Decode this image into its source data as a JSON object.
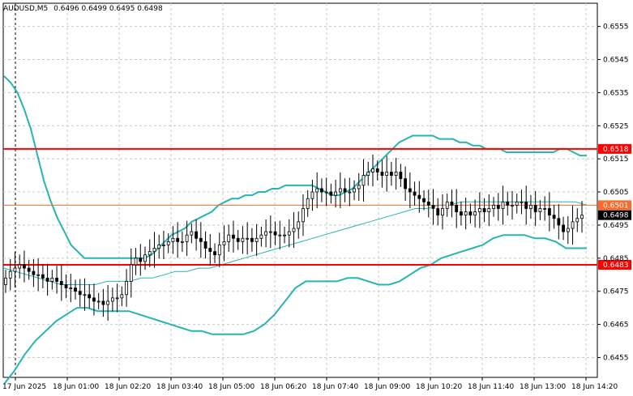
{
  "header": {
    "symbol_label": "AUDUSD,M5",
    "ohlc_label": "0.6496 0.6499 0.6495 0.6498"
  },
  "chart_data": {
    "type": "candlestick",
    "symbol": "AUDUSD",
    "timeframe": "M5",
    "ylim": [
      0.6449,
      0.6562
    ],
    "y_ticks": [
      "0.6555",
      "0.6545",
      "0.6535",
      "0.6525",
      "0.6515",
      "0.6505",
      "0.6495",
      "0.6485",
      "0.6475",
      "0.6465",
      "0.6455"
    ],
    "x_ticks": [
      "17 Jun 2025",
      "18 Jun 01:00",
      "18 Jun 02:20",
      "18 Jun 03:40",
      "18 Jun 05:00",
      "18 Jun 06:20",
      "18 Jun 07:40",
      "18 Jun 09:00",
      "18 Jun 10:20",
      "18 Jun 11:40",
      "18 Jun 13:00",
      "18 Jun 14:20"
    ],
    "horizontal_lines": [
      {
        "label": "0.6518",
        "value": 0.6518,
        "color": "#ff0000"
      },
      {
        "label": "0.6501",
        "value": 0.6501,
        "color": "#ff6a2a"
      },
      {
        "label": "0.6483",
        "value": 0.6483,
        "color": "#ff0000"
      }
    ],
    "current_price": {
      "label": "0.6498",
      "value": 0.6498
    },
    "close": [
      0.6479,
      0.6481,
      0.6482,
      0.6483,
      0.6482,
      0.6481,
      0.648,
      0.648,
      0.6479,
      0.6478,
      0.6479,
      0.6478,
      0.6477,
      0.6476,
      0.6476,
      0.6475,
      0.6474,
      0.6474,
      0.6473,
      0.6472,
      0.6472,
      0.6471,
      0.6472,
      0.6473,
      0.6473,
      0.6474,
      0.6478,
      0.6483,
      0.6485,
      0.6484,
      0.6486,
      0.6487,
      0.6488,
      0.6489,
      0.6489,
      0.649,
      0.6491,
      0.649,
      0.649,
      0.6492,
      0.6493,
      0.6491,
      0.649,
      0.6488,
      0.6487,
      0.6486,
      0.6489,
      0.649,
      0.6492,
      0.6491,
      0.649,
      0.6491,
      0.6491,
      0.649,
      0.6491,
      0.6492,
      0.6493,
      0.6493,
      0.6492,
      0.6492,
      0.6492,
      0.6493,
      0.6494,
      0.6496,
      0.65,
      0.6503,
      0.6505,
      0.6506,
      0.6505,
      0.6505,
      0.6504,
      0.6505,
      0.6506,
      0.6505,
      0.6505,
      0.6506,
      0.6507,
      0.651,
      0.6511,
      0.6512,
      0.6511,
      0.651,
      0.6511,
      0.651,
      0.6511,
      0.6509,
      0.6506,
      0.6505,
      0.6504,
      0.6503,
      0.6502,
      0.6501,
      0.65,
      0.6498,
      0.65,
      0.6502,
      0.6501,
      0.6499,
      0.6498,
      0.6499,
      0.6498,
      0.6499,
      0.65,
      0.6499,
      0.65,
      0.6501,
      0.65,
      0.6502,
      0.6501,
      0.6501,
      0.6502,
      0.6502,
      0.65,
      0.6501,
      0.6499,
      0.65,
      0.65,
      0.6498,
      0.6497,
      0.6495,
      0.6493,
      0.6494,
      0.6496,
      0.6497,
      0.6498
    ],
    "bb_upper": [
      0.654,
      0.6538,
      0.6535,
      0.653,
      0.6524,
      0.6516,
      0.6508,
      0.6502,
      0.6497,
      0.6493,
      0.6489,
      0.6487,
      0.6485,
      0.6485,
      0.6485,
      0.6485,
      0.6485,
      0.6485,
      0.6485,
      0.6485,
      0.6485,
      0.6485,
      0.6486,
      0.6488,
      0.649,
      0.6492,
      0.6493,
      0.6494,
      0.6496,
      0.6497,
      0.6498,
      0.6499,
      0.6501,
      0.6502,
      0.6503,
      0.6503,
      0.6504,
      0.6504,
      0.6505,
      0.6505,
      0.6506,
      0.6506,
      0.6507,
      0.6507,
      0.6507,
      0.6507,
      0.6507,
      0.6506,
      0.6505,
      0.6504,
      0.6504,
      0.6505,
      0.6506,
      0.6508,
      0.651,
      0.6512,
      0.6514,
      0.6516,
      0.6518,
      0.652,
      0.6521,
      0.6522,
      0.6522,
      0.6522,
      0.6522,
      0.6521,
      0.6521,
      0.6521,
      0.652,
      0.652,
      0.6519,
      0.6519,
      0.6518,
      0.6518,
      0.6518,
      0.6517,
      0.6517,
      0.6517,
      0.6517,
      0.6517,
      0.6517,
      0.6517,
      0.6517,
      0.6518,
      0.6518,
      0.6517,
      0.6516,
      0.6516
    ],
    "bb_middle": [
      0.6482,
      0.6481,
      0.648,
      0.6479,
      0.6478,
      0.6477,
      0.6477,
      0.6477,
      0.6477,
      0.6478,
      0.6478,
      0.6478,
      0.6479,
      0.6479,
      0.648,
      0.6481,
      0.6481,
      0.6482,
      0.6482,
      0.6483,
      0.6484,
      0.6485,
      0.6486,
      0.6487,
      0.6488,
      0.6489,
      0.649,
      0.6491,
      0.6492,
      0.6493,
      0.6494,
      0.6495,
      0.6496,
      0.6497,
      0.6498,
      0.6499,
      0.65,
      0.65,
      0.6501,
      0.6501,
      0.6502,
      0.6502,
      0.6502,
      0.6502,
      0.6502,
      0.6502,
      0.6502,
      0.6502,
      0.6502,
      0.6502,
      0.6502,
      0.6501
    ],
    "bb_lower": [
      0.6447,
      0.6451,
      0.6456,
      0.646,
      0.6463,
      0.6466,
      0.6468,
      0.647,
      0.647,
      0.6469,
      0.6469,
      0.6469,
      0.6469,
      0.6468,
      0.6467,
      0.6466,
      0.6465,
      0.6464,
      0.6463,
      0.6463,
      0.6462,
      0.6462,
      0.6462,
      0.6462,
      0.6463,
      0.6465,
      0.6468,
      0.6472,
      0.6476,
      0.6478,
      0.6478,
      0.6478,
      0.6478,
      0.6479,
      0.6479,
      0.6478,
      0.6477,
      0.6477,
      0.6478,
      0.648,
      0.6482,
      0.6483,
      0.6485,
      0.6486,
      0.6487,
      0.6488,
      0.6489,
      0.6491,
      0.6492,
      0.6492,
      0.6492,
      0.6491,
      0.6491,
      0.649,
      0.6488,
      0.6488,
      0.6488
    ],
    "colors": {
      "candle": "#000000",
      "bands": "#26b5b0",
      "middle_band": "#26b5b0",
      "grid": "#c8c8c8",
      "line_primary": "#ff0000",
      "line_secondary": "#ff6a2a",
      "price_tag_current": "#000000"
    }
  }
}
